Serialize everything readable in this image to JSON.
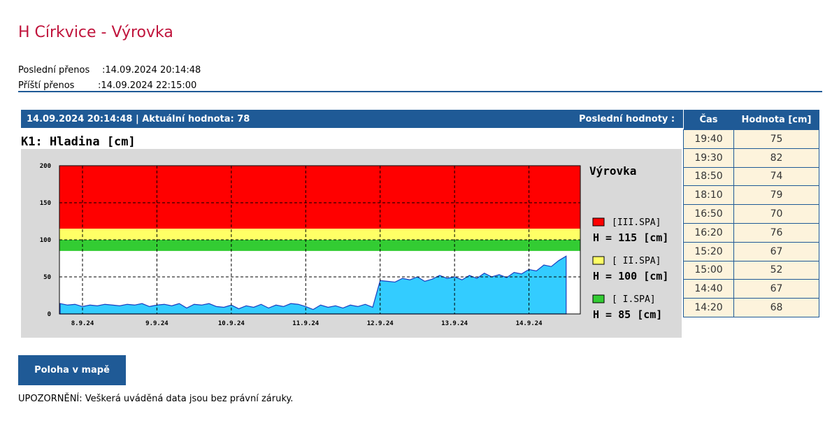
{
  "header": {
    "title": "H Církvice - Výrovka",
    "last_label": "Poslední přenos",
    "last_value": ":14.09.2024 20:14:48",
    "next_label": "Příští přenos",
    "next_value": ":14.09.2024 22:15:00"
  },
  "panel": {
    "status": "14.09.2024 20:14:48 | Aktuální hodnota: 78",
    "recent_label": "Poslední hodnoty :"
  },
  "table": {
    "columns": [
      "Čas",
      "Hodnota [cm]"
    ],
    "rows": [
      [
        "19:40",
        75
      ],
      [
        "19:30",
        82
      ],
      [
        "18:50",
        74
      ],
      [
        "18:10",
        79
      ],
      [
        "16:50",
        70
      ],
      [
        "16:20",
        76
      ],
      [
        "15:20",
        67
      ],
      [
        "15:00",
        52
      ],
      [
        "14:40",
        67
      ],
      [
        "14:20",
        68
      ]
    ]
  },
  "chart_data": {
    "type": "area",
    "title": "K1: Hladina [cm]",
    "station": "Výrovka",
    "series": [
      {
        "color": "#33ccff",
        "line_color": "#1a3fbf",
        "x": [
          7.7,
          7.8,
          7.9,
          8.0,
          8.1,
          8.2,
          8.3,
          8.4,
          8.5,
          8.6,
          8.7,
          8.8,
          8.9,
          9.0,
          9.1,
          9.2,
          9.3,
          9.4,
          9.5,
          9.6,
          9.7,
          9.8,
          9.9,
          10.0,
          10.1,
          10.2,
          10.3,
          10.4,
          10.5,
          10.6,
          10.7,
          10.8,
          10.9,
          11.0,
          11.1,
          11.2,
          11.3,
          11.4,
          11.5,
          11.6,
          11.7,
          11.8,
          11.9,
          12.0,
          12.1,
          12.2,
          12.3,
          12.4,
          12.5,
          12.6,
          12.7,
          12.8,
          12.9,
          13.0,
          13.1,
          13.2,
          13.3,
          13.4,
          13.5,
          13.6,
          13.7,
          13.8,
          13.9,
          14.0,
          14.1,
          14.2,
          14.3,
          14.4,
          14.5
        ],
        "values": [
          14,
          12,
          13,
          10,
          12,
          11,
          13,
          12,
          11,
          13,
          12,
          14,
          10,
          12,
          13,
          11,
          14,
          8,
          13,
          12,
          14,
          10,
          9,
          12,
          7,
          11,
          9,
          13,
          8,
          12,
          10,
          14,
          13,
          10,
          6,
          12,
          9,
          11,
          8,
          12,
          10,
          13,
          9,
          45,
          44,
          43,
          48,
          46,
          50,
          44,
          47,
          52,
          48,
          50,
          46,
          52,
          48,
          55,
          50,
          53,
          49,
          56,
          54,
          60,
          58,
          66,
          64,
          72,
          78
        ]
      }
    ],
    "zones": [
      {
        "name": "[III.SPA]",
        "label": "H = 115 [cm]",
        "from": 115,
        "to": 200,
        "color": "#ff0000"
      },
      {
        "name": "[ II.SPA]",
        "label": "H = 100 [cm]",
        "from": 100,
        "to": 115,
        "color": "#ffff66"
      },
      {
        "name": "[ I.SPA]",
        "label": "H = 85 [cm]",
        "from": 85,
        "to": 100,
        "color": "#33cc33"
      }
    ],
    "xlim": [
      7.69,
      14.69
    ],
    "xticks": [
      {
        "value": 8,
        "label": "8.9.24"
      },
      {
        "value": 9,
        "label": "9.9.24"
      },
      {
        "value": 10,
        "label": "10.9.24"
      },
      {
        "value": 11,
        "label": "11.9.24"
      },
      {
        "value": 12,
        "label": "12.9.24"
      },
      {
        "value": 13,
        "label": "13.9.24"
      },
      {
        "value": 14,
        "label": "14.9.24"
      }
    ],
    "ylim": [
      0,
      200
    ],
    "yticks": [
      0,
      50,
      100,
      150,
      200
    ],
    "grid": true
  },
  "button": "Poloha v mapě",
  "warning": "UPOZORNĚNÍ: Veškerá uváděná data jsou bez právní záruky."
}
